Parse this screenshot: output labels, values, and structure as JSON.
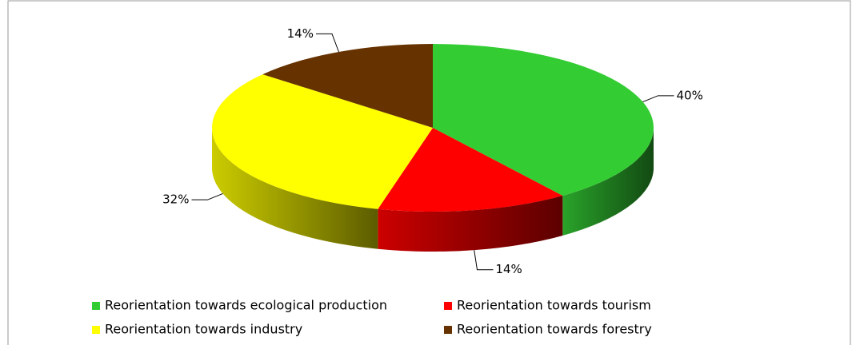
{
  "chart_data": {
    "type": "pie",
    "categories": [
      "Reorientation towards ecological production",
      "Reorientation towards tourism",
      "Reorientation towards industry",
      "Reorientation towards forestry"
    ],
    "values": [
      40,
      14,
      32,
      14
    ],
    "value_labels": [
      "40%",
      "14%",
      "32%",
      "14%"
    ],
    "colors": [
      "#33cc33",
      "#ff0000",
      "#ffff00",
      "#663300"
    ]
  }
}
